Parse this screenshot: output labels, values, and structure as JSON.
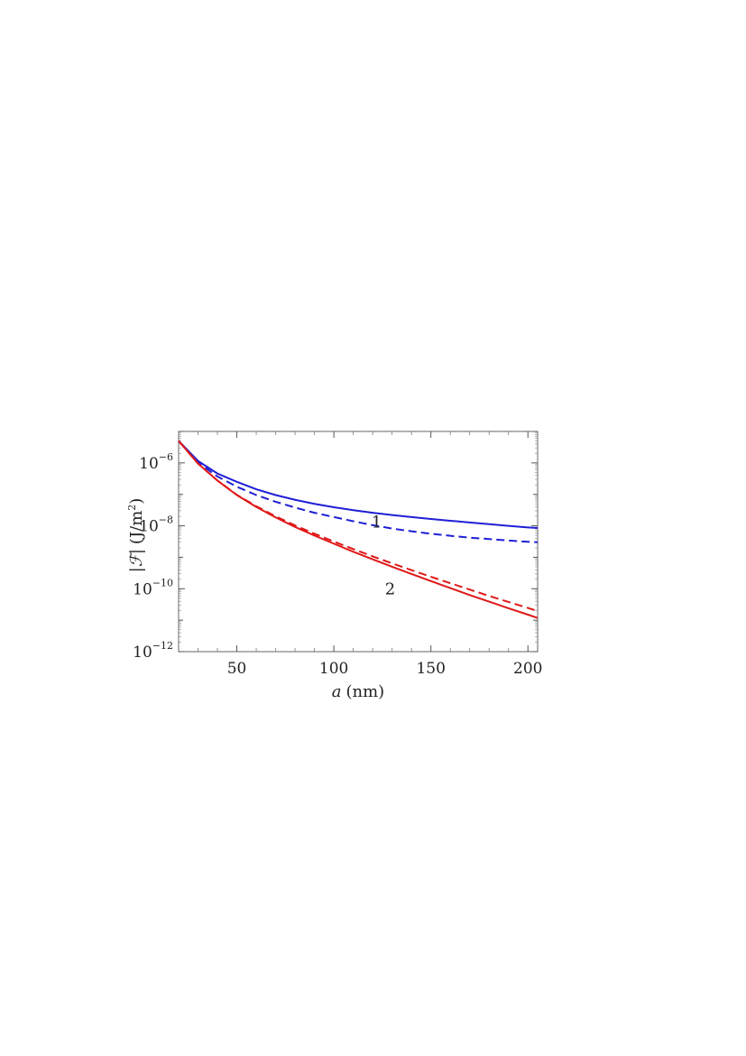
{
  "chart_data": {
    "type": "line",
    "title": "",
    "xlabel_prefix": "a",
    "xlabel_unit": "(nm)",
    "ylabel_symbol": "|ℱ|",
    "ylabel_unit": "(J/m",
    "ylabel_unit_exp": "2",
    "ylabel_unit_close": ")",
    "xlim": [
      20,
      205
    ],
    "ylim": [
      1e-12,
      1e-05
    ],
    "yscale": "log",
    "grid": false,
    "x_ticks": [
      50,
      100,
      150,
      200
    ],
    "x_tick_labels": [
      "50",
      "100",
      "150",
      "200"
    ],
    "y_ticks": [
      1e-06,
      1e-08,
      1e-10,
      1e-12
    ],
    "y_tick_labels": [
      {
        "base": "10",
        "exp": "−6"
      },
      {
        "base": "10",
        "exp": "−8"
      },
      {
        "base": "10",
        "exp": "−10"
      },
      {
        "base": "10",
        "exp": "−12"
      }
    ],
    "x": [
      20,
      30,
      40,
      50,
      60,
      70,
      80,
      90,
      100,
      110,
      120,
      130,
      140,
      150,
      160,
      170,
      180,
      190,
      200,
      205
    ],
    "series": [
      {
        "color": "#1f1fd6",
        "dash": false,
        "label": "1",
        "label_at": [
          122,
          1.3e-08
        ],
        "values": [
          5e-06,
          1.15e-06,
          4.6e-07,
          2.5e-07,
          1.45e-07,
          9.5e-08,
          6.7e-08,
          5e-08,
          3.9e-08,
          3.15e-08,
          2.6e-08,
          2.2e-08,
          1.9e-08,
          1.65e-08,
          1.45e-08,
          1.28e-08,
          1.13e-08,
          1e-08,
          8.9e-09,
          8.5e-09
        ]
      },
      {
        "color": "#1f1fd6",
        "dash": true,
        "label": "",
        "values": [
          5e-06,
          1.05e-06,
          3.7e-07,
          1.75e-07,
          9.5e-08,
          5.8e-08,
          3.8e-08,
          2.6e-08,
          1.9e-08,
          1.4e-08,
          1.05e-08,
          8.2e-09,
          6.7e-09,
          5.6e-09,
          4.8e-09,
          4.2e-09,
          3.8e-09,
          3.4e-09,
          3.1e-09,
          3e-09
        ]
      },
      {
        "color": "#e01818",
        "dash": false,
        "label": "2",
        "label_at": [
          129,
          1e-10
        ],
        "values": [
          5e-06,
          9.5e-07,
          2.75e-07,
          9.5e-08,
          4e-08,
          1.85e-08,
          9.2e-09,
          4.9e-09,
          2.7e-09,
          1.5e-09,
          8.6e-10,
          5e-10,
          2.95e-10,
          1.75e-10,
          1.05e-10,
          6.3e-11,
          3.9e-11,
          2.4e-11,
          1.5e-11,
          1.18e-11
        ]
      },
      {
        "color": "#e01818",
        "dash": true,
        "label": "",
        "values": [
          5e-06,
          9.5e-07,
          2.75e-07,
          9.7e-08,
          4.2e-08,
          2e-08,
          1.03e-08,
          5.6e-09,
          3.15e-09,
          1.82e-09,
          1.07e-09,
          6.4e-10,
          3.9e-10,
          2.4e-10,
          1.5e-10,
          9.4e-11,
          5.9e-11,
          3.8e-11,
          2.45e-11,
          1.95e-11
        ]
      }
    ]
  }
}
